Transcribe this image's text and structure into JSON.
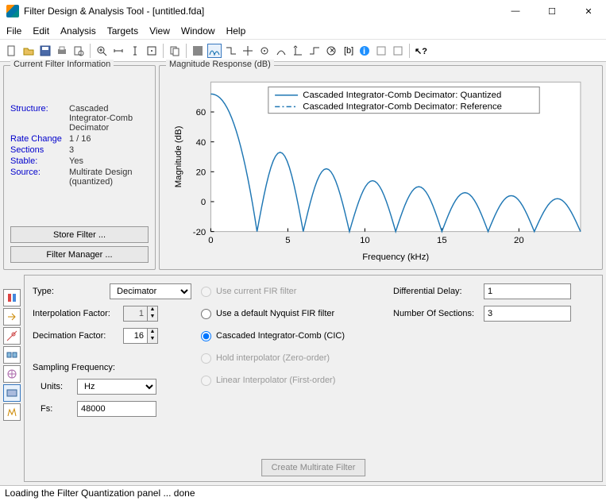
{
  "window": {
    "title": "Filter Design & Analysis Tool -   [untitled.fda]"
  },
  "menu": {
    "items": [
      "File",
      "Edit",
      "Analysis",
      "Targets",
      "View",
      "Window",
      "Help"
    ]
  },
  "cfi": {
    "legend": "Current Filter Information",
    "rows": [
      {
        "k": "Structure:",
        "v": "Cascaded Integrator-Comb Decimator"
      },
      {
        "k": "Rate Change",
        "v": "1 / 16"
      },
      {
        "k": "Sections",
        "v": "3"
      },
      {
        "k": "Stable:",
        "v": "Yes"
      },
      {
        "k": "Source:",
        "v": "Multirate Design (quantized)"
      }
    ],
    "btn_store": "Store Filter ...",
    "btn_mgr": "Filter Manager ..."
  },
  "chart": {
    "legend": "Magnitude Response (dB)",
    "type": "line",
    "xlabel": "Frequency (kHz)",
    "ylabel": "Magnitude (dB)",
    "xlim": [
      0,
      24
    ],
    "xticks": [
      0,
      5,
      10,
      15,
      20
    ],
    "ylim": [
      -20,
      80
    ],
    "yticks": [
      -20,
      0,
      20,
      40,
      60
    ],
    "series_legend": [
      "Cascaded Integrator-Comb Decimator: Quantized",
      "Cascaded Integrator-Comb Decimator: Reference"
    ],
    "line_color": "#1f77b4",
    "axis_color": "#000000",
    "box_color": "#b0b0b0",
    "grid_color": "#d9d9d9",
    "background_color": "#ffffff",
    "label_fontsize": 12,
    "tick_fontsize": 11,
    "null_freqs": [
      3.0,
      6.0,
      9.0,
      12.0,
      15.0,
      18.0,
      21.0
    ],
    "peak_db": 72,
    "lobe_peaks_db": [
      33,
      22,
      14,
      10,
      6,
      4,
      2
    ],
    "floor_db": -20
  },
  "form": {
    "type_label": "Type:",
    "type_value": "Decimator",
    "interp_label": "Interpolation Factor:",
    "interp_value": "1",
    "decim_label": "Decimation Factor:",
    "decim_value": "16",
    "samp_heading": "Sampling Frequency:",
    "units_label": "Units:",
    "units_value": "Hz",
    "fs_label": "Fs:",
    "fs_value": "48000",
    "radio_fir": "Use current FIR filter",
    "radio_nyq": "Use a default Nyquist FIR filter",
    "radio_cic": "Cascaded Integrator-Comb (CIC)",
    "radio_hold": "Hold interpolator (Zero-order)",
    "radio_lin": "Linear Interpolator (First-order)",
    "diff_label": "Differential Delay:",
    "diff_value": "1",
    "nsec_label": "Number Of Sections:",
    "nsec_value": "3",
    "create_btn": "Create Multirate Filter"
  },
  "status": {
    "text": "Loading the Filter Quantization panel ... done"
  }
}
